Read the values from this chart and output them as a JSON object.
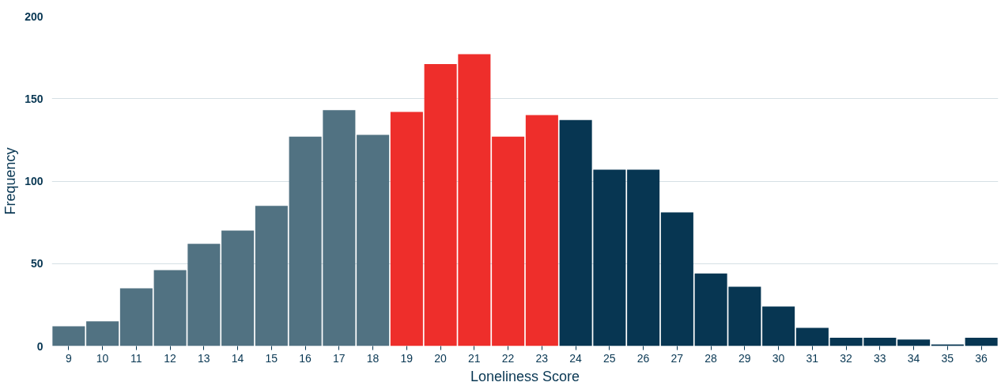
{
  "chart_data": {
    "type": "bar",
    "xlabel": "Loneliness Score",
    "ylabel": "Frequency",
    "categories": [
      "9",
      "10",
      "11",
      "12",
      "13",
      "14",
      "15",
      "16",
      "17",
      "18",
      "19",
      "20",
      "21",
      "22",
      "23",
      "24",
      "25",
      "26",
      "27",
      "28",
      "29",
      "30",
      "31",
      "32",
      "33",
      "34",
      "35",
      "36"
    ],
    "values": [
      12,
      15,
      35,
      46,
      62,
      70,
      85,
      127,
      143,
      128,
      142,
      171,
      177,
      127,
      140,
      137,
      107,
      107,
      81,
      44,
      36,
      24,
      11,
      5,
      5,
      4,
      1,
      5
    ],
    "colors": [
      "#517282",
      "#517282",
      "#517282",
      "#517282",
      "#517282",
      "#517282",
      "#517282",
      "#517282",
      "#517282",
      "#517282",
      "#ee2e2b",
      "#ee2e2b",
      "#ee2e2b",
      "#ee2e2b",
      "#ee2e2b",
      "#073652",
      "#073652",
      "#073652",
      "#073652",
      "#073652",
      "#073652",
      "#073652",
      "#073652",
      "#073652",
      "#073652",
      "#073652",
      "#073652",
      "#073652"
    ],
    "ylim": [
      0,
      200
    ],
    "yticks": [
      0,
      50,
      100,
      150,
      200
    ],
    "grid": "y"
  }
}
